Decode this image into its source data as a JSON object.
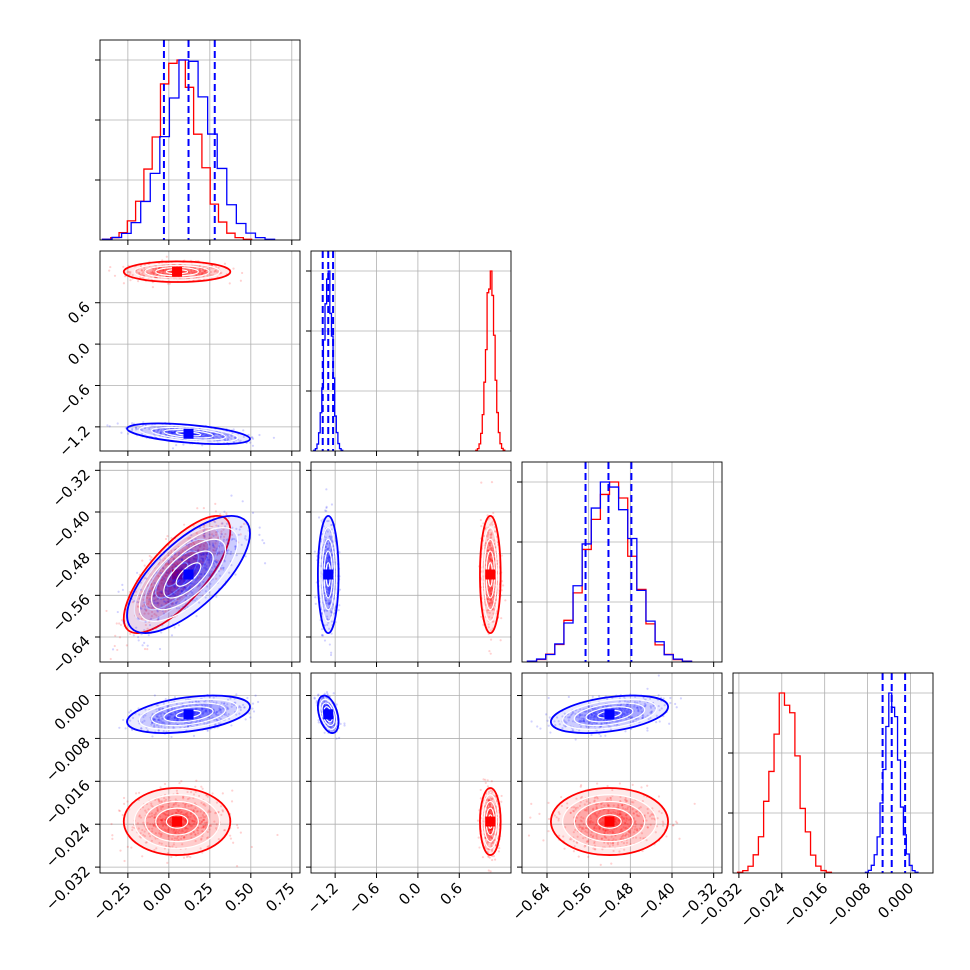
{
  "colors": {
    "series_a": "#ff0000",
    "series_b": "#0000ff",
    "grid": "#b0b0b0",
    "frame": "#000000"
  },
  "chart_data": {
    "type": "corner",
    "n_params": 4,
    "grid": true,
    "ranges": [
      [
        -0.42,
        0.8
      ],
      [
        -1.55,
        1.35
      ],
      [
        -0.688,
        -0.304
      ],
      [
        -0.0331,
        0.0042
      ]
    ],
    "ticks": [
      {
        "values": [
          -0.25,
          0.0,
          0.25,
          0.5,
          0.75
        ],
        "labels": [
          "−0.25",
          "0.00",
          "0.25",
          "0.50",
          "0.75"
        ]
      },
      {
        "values": [
          -1.2,
          -0.6,
          0.0,
          0.6
        ],
        "labels": [
          "−1.2",
          "−0.6",
          "0.0",
          "0.6"
        ]
      },
      {
        "values": [
          -0.64,
          -0.56,
          -0.48,
          -0.4,
          -0.32
        ],
        "labels": [
          "−0.64",
          "−0.56",
          "−0.48",
          "−0.40",
          "−0.32"
        ]
      },
      {
        "values": [
          -0.032,
          -0.024,
          -0.016,
          -0.008,
          0.0
        ],
        "labels": [
          "−0.032",
          "−0.024",
          "−0.016",
          "−0.008",
          "0.000"
        ]
      }
    ],
    "series": [
      {
        "color": "#ff0000",
        "mean": [
          0.05,
          1.05,
          -0.52,
          -0.0235
        ],
        "sd": [
          0.13,
          0.06,
          0.045,
          0.0025
        ],
        "corr": {
          "0-2": 0.75
        },
        "hist_counts": [
          0.01,
          0.03,
          0.08,
          0.17,
          0.34,
          0.55,
          0.76,
          0.97,
          1.0,
          0.93,
          0.81,
          0.62,
          0.44,
          0.24,
          0.12,
          0.06,
          0.03,
          0.01,
          0.005,
          0.002
        ]
      },
      {
        "color": "#0000ff",
        "mean": [
          0.12,
          -1.3,
          -0.52,
          -0.0035
        ],
        "sd": [
          0.15,
          0.06,
          0.045,
          0.0014
        ],
        "corr": {
          "0-1": -0.5,
          "0-2": 0.7,
          "0-3": 0.4,
          "1-3": -0.4,
          "2-3": 0.4
        },
        "quantiles": [
          [
            -0.03,
            0.12,
            0.28
          ],
          [
            -1.38,
            -1.3,
            -1.23
          ],
          [
            -0.566,
            -0.522,
            -0.478
          ],
          [
            -0.0052,
            -0.0035,
            -0.001
          ]
        ],
        "hist_counts": [
          0.01,
          0.02,
          0.06,
          0.14,
          0.28,
          0.48,
          0.7,
          0.9,
          1.0,
          0.97,
          0.85,
          0.68,
          0.5,
          0.33,
          0.2,
          0.11,
          0.05,
          0.03,
          0.015,
          0.005
        ]
      }
    ]
  }
}
